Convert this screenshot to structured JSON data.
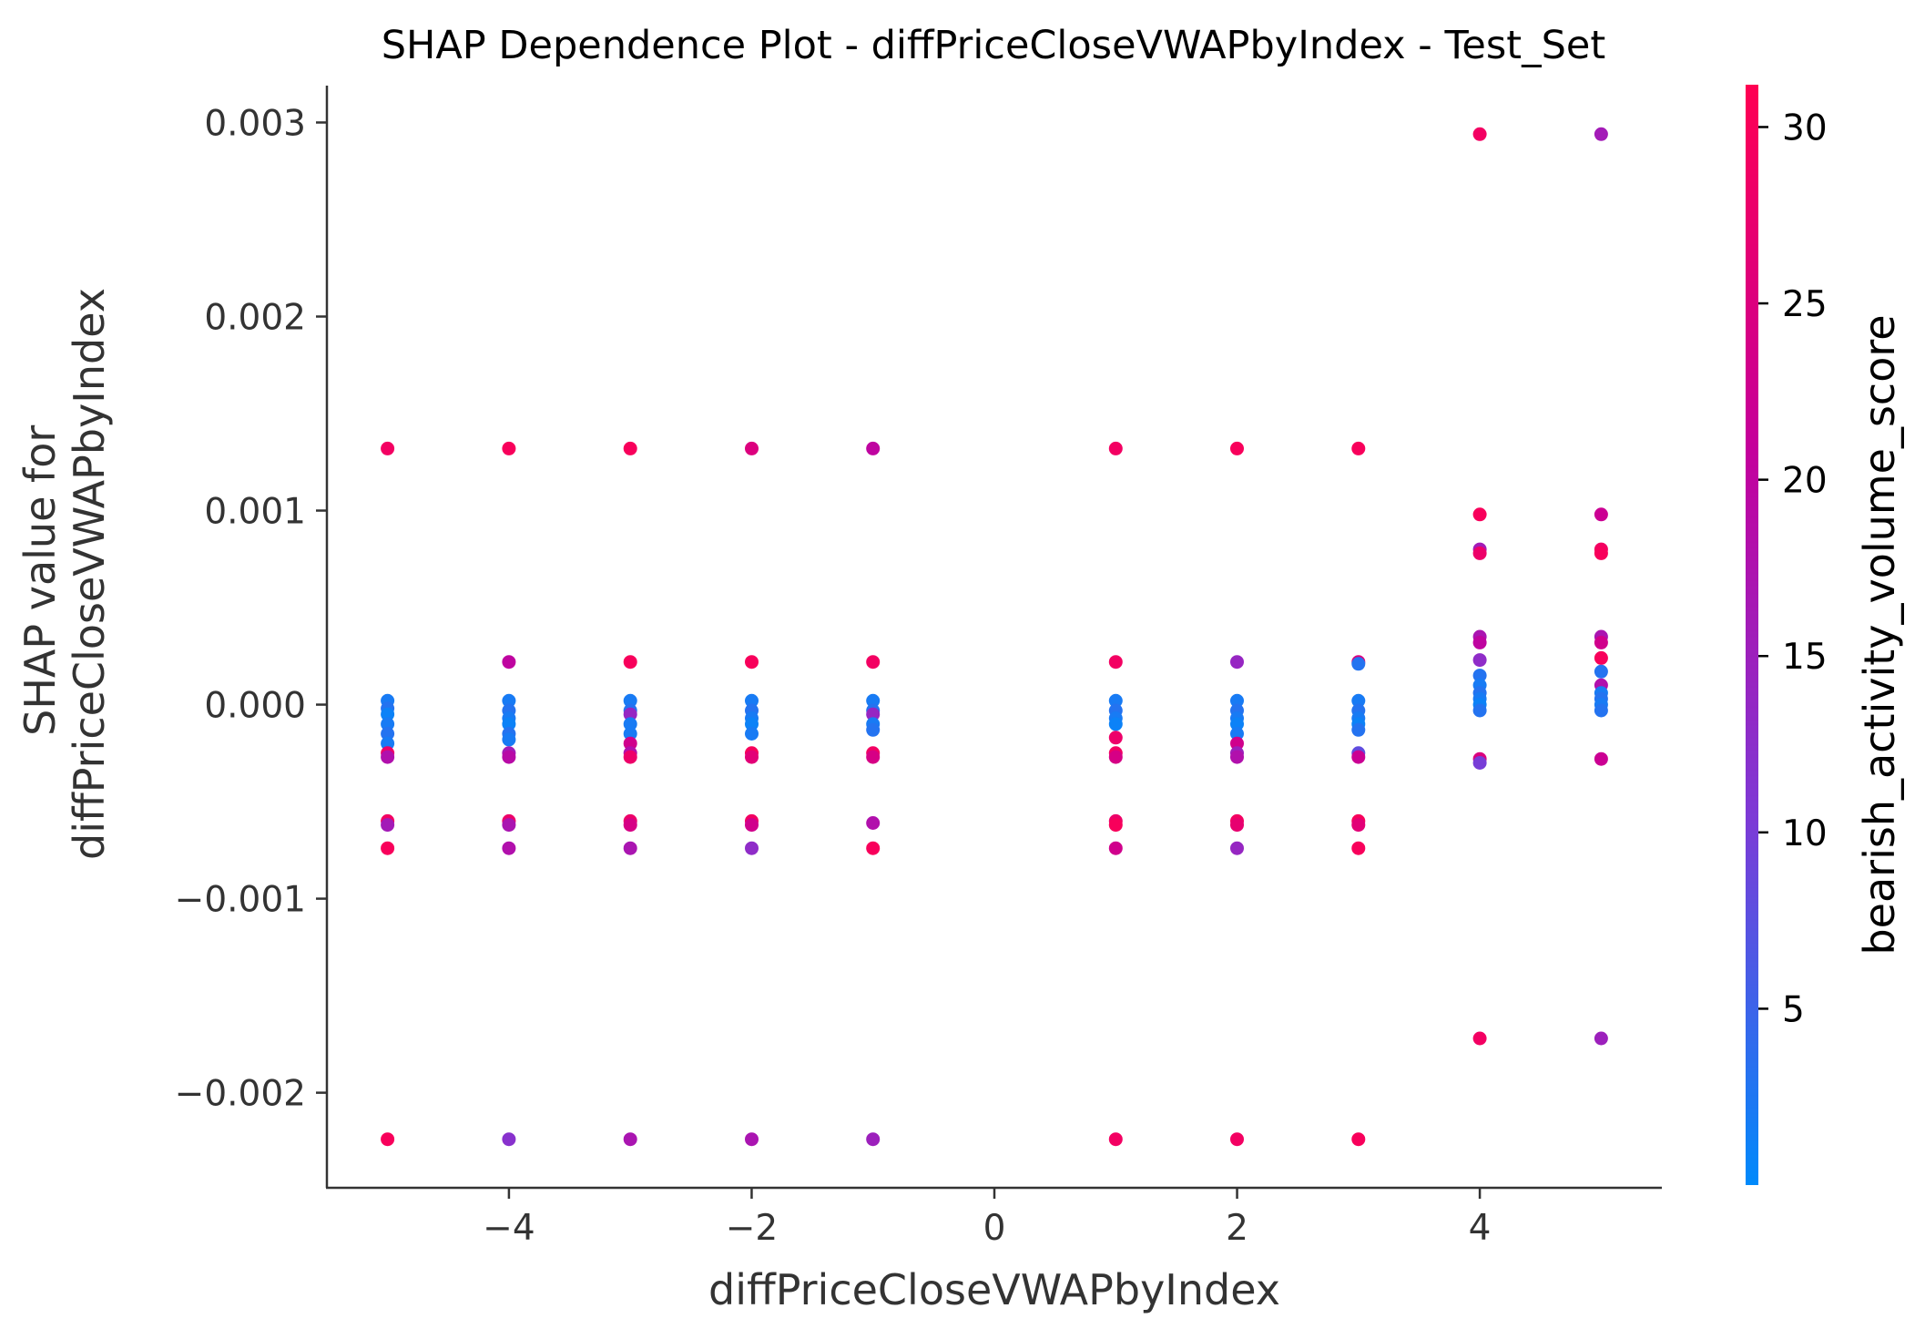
{
  "chart_data": {
    "type": "scatter",
    "title": "SHAP Dependence Plot - diffPriceCloseVWAPbyIndex - Test_Set",
    "xlabel": "diffPriceCloseVWAPbyIndex",
    "ylabel_lines": [
      "SHAP value for",
      "diffPriceCloseVWAPbyIndex"
    ],
    "xlim": [
      -5.5,
      5.5
    ],
    "ylim": [
      -0.00249,
      0.00319
    ],
    "x_ticks": [
      {
        "value": -4,
        "label": "−4"
      },
      {
        "value": -2,
        "label": "−2"
      },
      {
        "value": 0,
        "label": "0"
      },
      {
        "value": 2,
        "label": "2"
      },
      {
        "value": 4,
        "label": "4"
      }
    ],
    "y_ticks": [
      {
        "value": 0.003,
        "label": "0.003"
      },
      {
        "value": 0.002,
        "label": "0.002"
      },
      {
        "value": 0.001,
        "label": "0.001"
      },
      {
        "value": 0.0,
        "label": "0.000"
      },
      {
        "value": -0.001,
        "label": "−0.001"
      },
      {
        "value": -0.002,
        "label": "−0.002"
      }
    ],
    "grid": false,
    "colorbar": {
      "label": "bearish_activity_volume_score",
      "range": [
        0,
        31.2
      ],
      "ticks": [
        {
          "value": 5,
          "label": "5"
        },
        {
          "value": 10,
          "label": "10"
        },
        {
          "value": 15,
          "label": "15"
        },
        {
          "value": 20,
          "label": "20"
        },
        {
          "value": 25,
          "label": "25"
        },
        {
          "value": 30,
          "label": "30"
        }
      ],
      "colormap": [
        "#008afb",
        "#7d3ad6",
        "#c4009c",
        "#ff0052"
      ]
    },
    "points": [
      {
        "x": -5,
        "y": 0.00132,
        "c": 29
      },
      {
        "x": -5,
        "y": 2e-05,
        "c": 2
      },
      {
        "x": -5,
        "y": -2e-05,
        "c": 3
      },
      {
        "x": -5,
        "y": -5e-05,
        "c": 1
      },
      {
        "x": -5,
        "y": -0.0001,
        "c": 2
      },
      {
        "x": -5,
        "y": -0.00015,
        "c": 3
      },
      {
        "x": -5,
        "y": -0.0002,
        "c": 2
      },
      {
        "x": -5,
        "y": -0.00025,
        "c": 28
      },
      {
        "x": -5,
        "y": -0.00027,
        "c": 18
      },
      {
        "x": -5,
        "y": -0.0006,
        "c": 29
      },
      {
        "x": -5,
        "y": -0.00062,
        "c": 16
      },
      {
        "x": -5,
        "y": -0.00074,
        "c": 30
      },
      {
        "x": -5,
        "y": -0.00224,
        "c": 30
      },
      {
        "x": -4,
        "y": 0.00132,
        "c": 30
      },
      {
        "x": -4,
        "y": 0.00022,
        "c": 20
      },
      {
        "x": -4,
        "y": 2e-05,
        "c": 2
      },
      {
        "x": -4,
        "y": -3e-05,
        "c": 3
      },
      {
        "x": -4,
        "y": -7e-05,
        "c": 2
      },
      {
        "x": -4,
        "y": -0.0001,
        "c": 1
      },
      {
        "x": -4,
        "y": -0.00015,
        "c": 3
      },
      {
        "x": -4,
        "y": -0.00018,
        "c": 2
      },
      {
        "x": -4,
        "y": -0.00025,
        "c": 16
      },
      {
        "x": -4,
        "y": -0.00027,
        "c": 19
      },
      {
        "x": -4,
        "y": -0.0006,
        "c": 28
      },
      {
        "x": -4,
        "y": -0.00062,
        "c": 17
      },
      {
        "x": -4,
        "y": -0.00074,
        "c": 18
      },
      {
        "x": -4,
        "y": -0.00224,
        "c": 12
      },
      {
        "x": -3,
        "y": 0.00132,
        "c": 30
      },
      {
        "x": -3,
        "y": 0.00022,
        "c": 30
      },
      {
        "x": -3,
        "y": 2e-05,
        "c": 2
      },
      {
        "x": -3,
        "y": -3e-05,
        "c": 3
      },
      {
        "x": -3,
        "y": -5e-05,
        "c": 14
      },
      {
        "x": -3,
        "y": -0.0001,
        "c": 2
      },
      {
        "x": -3,
        "y": -0.00015,
        "c": 2
      },
      {
        "x": -3,
        "y": -0.0002,
        "c": 23
      },
      {
        "x": -3,
        "y": -0.00025,
        "c": 18
      },
      {
        "x": -3,
        "y": -0.00027,
        "c": 28
      },
      {
        "x": -3,
        "y": -0.0006,
        "c": 28
      },
      {
        "x": -3,
        "y": -0.00062,
        "c": 24
      },
      {
        "x": -3,
        "y": -0.00074,
        "c": 17
      },
      {
        "x": -3,
        "y": -0.00224,
        "c": 17
      },
      {
        "x": -2,
        "y": 0.00132,
        "c": 25
      },
      {
        "x": -2,
        "y": 0.00022,
        "c": 30
      },
      {
        "x": -2,
        "y": 2e-05,
        "c": 2
      },
      {
        "x": -2,
        "y": -3e-05,
        "c": 3
      },
      {
        "x": -2,
        "y": -7e-05,
        "c": 2
      },
      {
        "x": -2,
        "y": -0.0001,
        "c": 1
      },
      {
        "x": -2,
        "y": -0.00015,
        "c": 2
      },
      {
        "x": -2,
        "y": -0.00025,
        "c": 30
      },
      {
        "x": -2,
        "y": -0.00027,
        "c": 26
      },
      {
        "x": -2,
        "y": -0.0006,
        "c": 29
      },
      {
        "x": -2,
        "y": -0.00062,
        "c": 23
      },
      {
        "x": -2,
        "y": -0.00074,
        "c": 13
      },
      {
        "x": -2,
        "y": -0.00224,
        "c": 17
      },
      {
        "x": -1,
        "y": 0.00132,
        "c": 20
      },
      {
        "x": -1,
        "y": 0.00022,
        "c": 29
      },
      {
        "x": -1,
        "y": 2e-05,
        "c": 2
      },
      {
        "x": -1,
        "y": -3e-05,
        "c": 3
      },
      {
        "x": -1,
        "y": -5e-05,
        "c": 14
      },
      {
        "x": -1,
        "y": -0.0001,
        "c": 2
      },
      {
        "x": -1,
        "y": -0.00013,
        "c": 3
      },
      {
        "x": -1,
        "y": -0.00025,
        "c": 29
      },
      {
        "x": -1,
        "y": -0.00027,
        "c": 24
      },
      {
        "x": -1,
        "y": -0.00061,
        "c": 18
      },
      {
        "x": -1,
        "y": -0.00074,
        "c": 30
      },
      {
        "x": -1,
        "y": -0.00224,
        "c": 15
      },
      {
        "x": 1,
        "y": 0.00132,
        "c": 29
      },
      {
        "x": 1,
        "y": 0.00022,
        "c": 29
      },
      {
        "x": 1,
        "y": 2e-05,
        "c": 2
      },
      {
        "x": 1,
        "y": -3e-05,
        "c": 3
      },
      {
        "x": 1,
        "y": -7e-05,
        "c": 2
      },
      {
        "x": 1,
        "y": -0.0001,
        "c": 1
      },
      {
        "x": 1,
        "y": -0.00017,
        "c": 28
      },
      {
        "x": 1,
        "y": -0.00025,
        "c": 29
      },
      {
        "x": 1,
        "y": -0.00027,
        "c": 24
      },
      {
        "x": 1,
        "y": -0.0006,
        "c": 28
      },
      {
        "x": 1,
        "y": -0.00062,
        "c": 30
      },
      {
        "x": 1,
        "y": -0.00074,
        "c": 23
      },
      {
        "x": 1,
        "y": -0.00224,
        "c": 29
      },
      {
        "x": 2,
        "y": 0.00132,
        "c": 30
      },
      {
        "x": 2,
        "y": 0.00022,
        "c": 14
      },
      {
        "x": 2,
        "y": 2e-05,
        "c": 2
      },
      {
        "x": 2,
        "y": -3e-05,
        "c": 3
      },
      {
        "x": 2,
        "y": -7e-05,
        "c": 2
      },
      {
        "x": 2,
        "y": -0.0001,
        "c": 1
      },
      {
        "x": 2,
        "y": -0.00015,
        "c": 2
      },
      {
        "x": 2,
        "y": -0.0002,
        "c": 23
      },
      {
        "x": 2,
        "y": -0.00025,
        "c": 15
      },
      {
        "x": 2,
        "y": -0.00027,
        "c": 18
      },
      {
        "x": 2,
        "y": -0.0006,
        "c": 29
      },
      {
        "x": 2,
        "y": -0.00062,
        "c": 27
      },
      {
        "x": 2,
        "y": -0.00074,
        "c": 14
      },
      {
        "x": 2,
        "y": -0.00224,
        "c": 29
      },
      {
        "x": 3,
        "y": 0.00132,
        "c": 30
      },
      {
        "x": 3,
        "y": 0.00022,
        "c": 25
      },
      {
        "x": 3,
        "y": 0.00021,
        "c": 3
      },
      {
        "x": 3,
        "y": 2e-05,
        "c": 2
      },
      {
        "x": 3,
        "y": -3e-05,
        "c": 3
      },
      {
        "x": 3,
        "y": -7e-05,
        "c": 2
      },
      {
        "x": 3,
        "y": -0.0001,
        "c": 1
      },
      {
        "x": 3,
        "y": -0.00013,
        "c": 3
      },
      {
        "x": 3,
        "y": -0.00025,
        "c": 8
      },
      {
        "x": 3,
        "y": -0.00027,
        "c": 22
      },
      {
        "x": 3,
        "y": -0.0006,
        "c": 30
      },
      {
        "x": 3,
        "y": -0.00062,
        "c": 26
      },
      {
        "x": 3,
        "y": -0.00074,
        "c": 30
      },
      {
        "x": 3,
        "y": -0.00224,
        "c": 30
      },
      {
        "x": 4,
        "y": 0.00294,
        "c": 29
      },
      {
        "x": 4,
        "y": 0.00098,
        "c": 30
      },
      {
        "x": 4,
        "y": 0.0008,
        "c": 16
      },
      {
        "x": 4,
        "y": 0.00078,
        "c": 28
      },
      {
        "x": 4,
        "y": 0.00035,
        "c": 17
      },
      {
        "x": 4,
        "y": 0.00032,
        "c": 20
      },
      {
        "x": 4,
        "y": 0.00023,
        "c": 13
      },
      {
        "x": 4,
        "y": 0.00015,
        "c": 3
      },
      {
        "x": 4,
        "y": 0.0001,
        "c": 2
      },
      {
        "x": 4,
        "y": 6e-05,
        "c": 3
      },
      {
        "x": 4,
        "y": 3e-05,
        "c": 2
      },
      {
        "x": 4,
        "y": 0.0,
        "c": 1
      },
      {
        "x": 4,
        "y": -3e-05,
        "c": 3
      },
      {
        "x": 4,
        "y": -0.00028,
        "c": 25
      },
      {
        "x": 4,
        "y": -0.0003,
        "c": 10
      },
      {
        "x": 4,
        "y": -0.00172,
        "c": 29
      },
      {
        "x": 5,
        "y": 0.00294,
        "c": 16
      },
      {
        "x": 5,
        "y": 0.00098,
        "c": 22
      },
      {
        "x": 5,
        "y": 0.0008,
        "c": 29
      },
      {
        "x": 5,
        "y": 0.00078,
        "c": 30
      },
      {
        "x": 5,
        "y": 0.00035,
        "c": 17
      },
      {
        "x": 5,
        "y": 0.00032,
        "c": 23
      },
      {
        "x": 5,
        "y": 0.00024,
        "c": 30
      },
      {
        "x": 5,
        "y": 0.00017,
        "c": 3
      },
      {
        "x": 5,
        "y": 0.0001,
        "c": 18
      },
      {
        "x": 5,
        "y": 6e-05,
        "c": 2
      },
      {
        "x": 5,
        "y": 3e-05,
        "c": 3
      },
      {
        "x": 5,
        "y": 0.0,
        "c": 2
      },
      {
        "x": 5,
        "y": -3e-05,
        "c": 3
      },
      {
        "x": 5,
        "y": -0.00028,
        "c": 22
      },
      {
        "x": 5,
        "y": -0.00172,
        "c": 15
      }
    ]
  }
}
